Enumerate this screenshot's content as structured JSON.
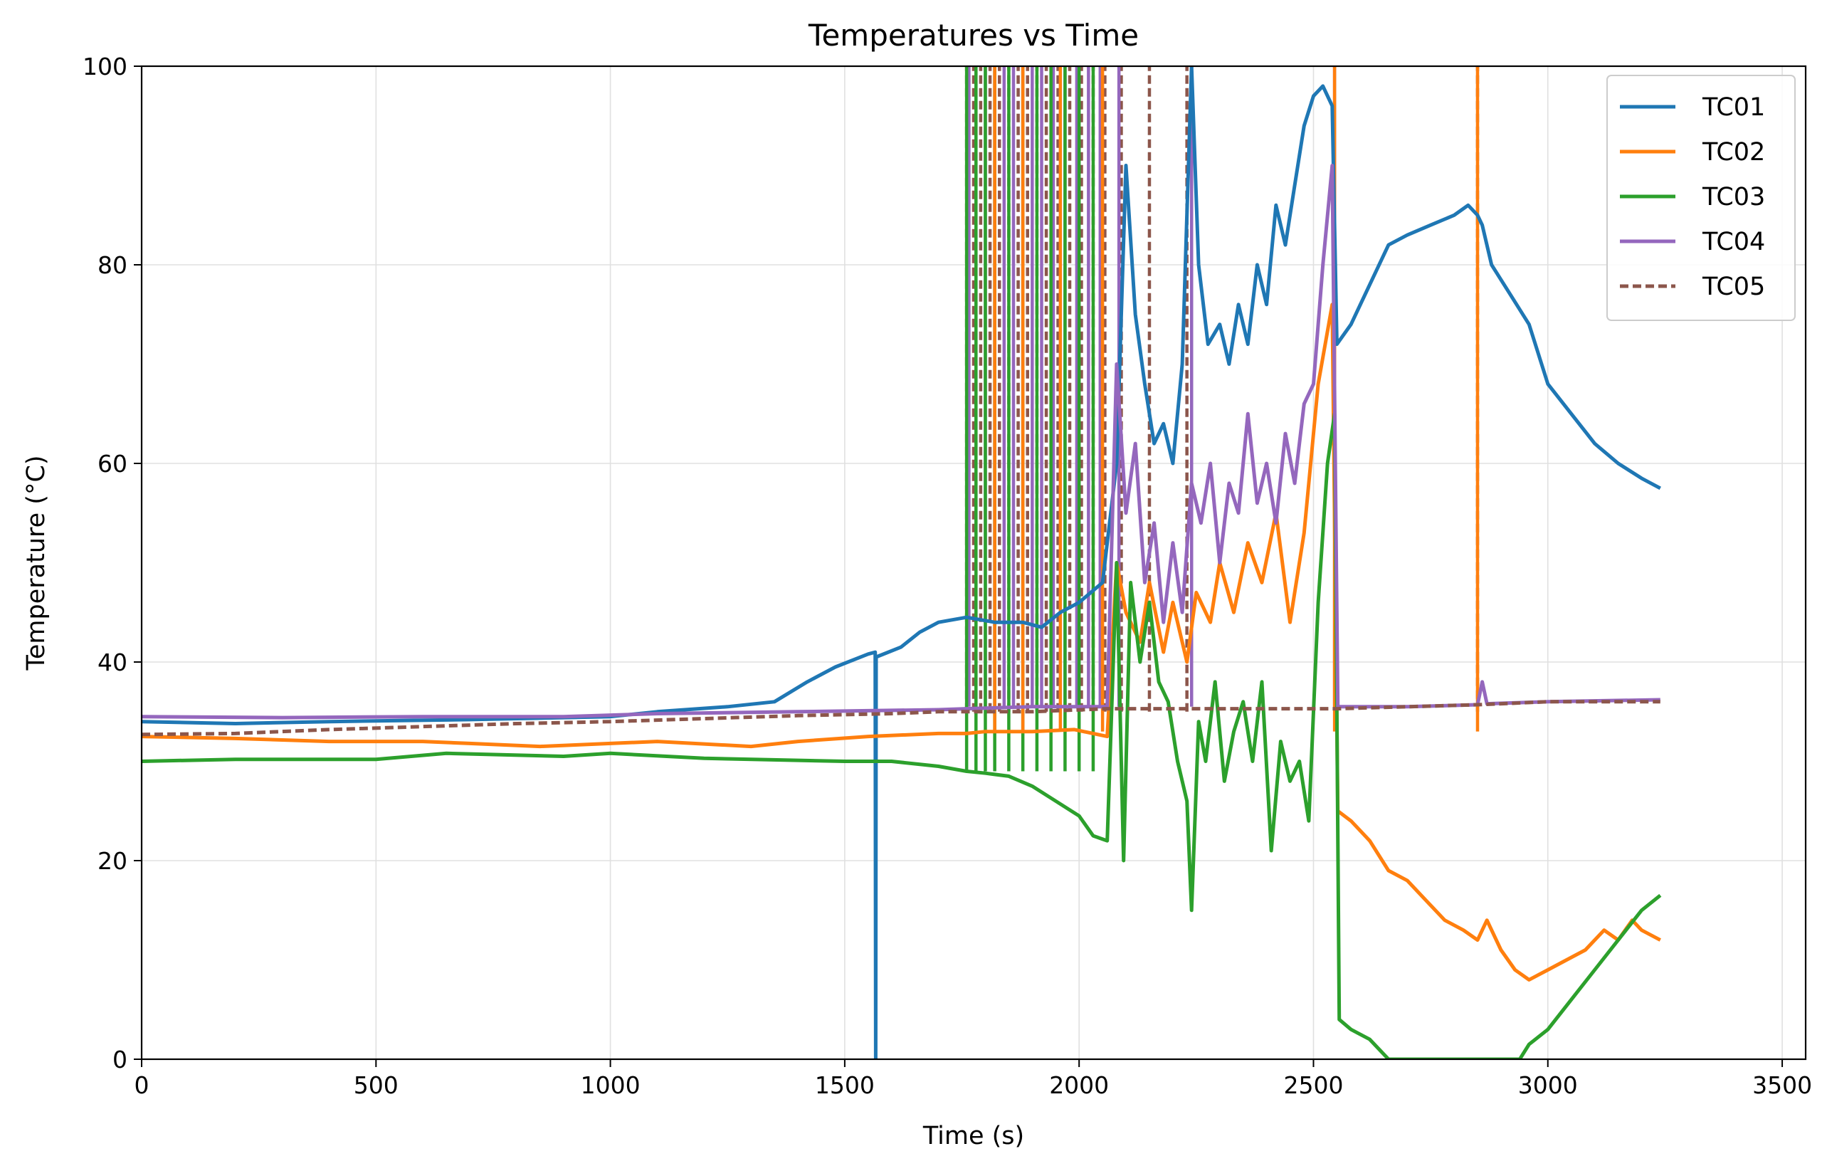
{
  "chart_data": {
    "type": "line",
    "title": "Temperatures vs Time",
    "xlabel": "Time (s)",
    "ylabel": "Temperature (°C)",
    "xlim": [
      0,
      3550
    ],
    "ylim": [
      0,
      100
    ],
    "xticks": [
      0,
      500,
      1000,
      1500,
      2000,
      2500,
      3000,
      3500
    ],
    "yticks": [
      0,
      20,
      40,
      60,
      80,
      100
    ],
    "grid": true,
    "legend_position": "top-right",
    "series": [
      {
        "name": "TC01",
        "color": "#1f77b4",
        "dash": false,
        "points": [
          [
            0,
            34
          ],
          [
            200,
            33.8
          ],
          [
            400,
            34
          ],
          [
            700,
            34.2
          ],
          [
            1000,
            34.5
          ],
          [
            1100,
            35
          ],
          [
            1250,
            35.5
          ],
          [
            1350,
            36
          ],
          [
            1420,
            38
          ],
          [
            1480,
            39.5
          ],
          [
            1550,
            40.8
          ],
          [
            1565,
            41
          ],
          [
            1566,
            0
          ],
          [
            1567,
            40.5
          ],
          [
            1620,
            41.5
          ],
          [
            1660,
            43
          ],
          [
            1700,
            44
          ],
          [
            1760,
            44.5
          ],
          [
            1820,
            44
          ],
          [
            1880,
            44
          ],
          [
            1920,
            43.5
          ],
          [
            1960,
            45
          ],
          [
            2000,
            46
          ],
          [
            2050,
            48
          ],
          [
            2080,
            60
          ],
          [
            2100,
            90
          ],
          [
            2120,
            75
          ],
          [
            2140,
            68
          ],
          [
            2160,
            62
          ],
          [
            2180,
            64
          ],
          [
            2200,
            60
          ],
          [
            2220,
            70
          ],
          [
            2240,
            100
          ],
          [
            2255,
            80
          ],
          [
            2275,
            72
          ],
          [
            2300,
            74
          ],
          [
            2320,
            70
          ],
          [
            2340,
            76
          ],
          [
            2360,
            72
          ],
          [
            2380,
            80
          ],
          [
            2400,
            76
          ],
          [
            2420,
            86
          ],
          [
            2440,
            82
          ],
          [
            2460,
            88
          ],
          [
            2480,
            94
          ],
          [
            2500,
            97
          ],
          [
            2520,
            98
          ],
          [
            2540,
            96
          ],
          [
            2550,
            72
          ],
          [
            2580,
            74
          ],
          [
            2620,
            78
          ],
          [
            2660,
            82
          ],
          [
            2700,
            83
          ],
          [
            2750,
            84
          ],
          [
            2800,
            85
          ],
          [
            2830,
            86
          ],
          [
            2850,
            85
          ],
          [
            2860,
            84
          ],
          [
            2880,
            80
          ],
          [
            2920,
            77
          ],
          [
            2960,
            74
          ],
          [
            3000,
            68
          ],
          [
            3050,
            65
          ],
          [
            3100,
            62
          ],
          [
            3150,
            60
          ],
          [
            3200,
            58.5
          ],
          [
            3240,
            57.5
          ]
        ]
      },
      {
        "name": "TC02",
        "color": "#ff7f0e",
        "dash": false,
        "points": [
          [
            0,
            32.5
          ],
          [
            200,
            32.3
          ],
          [
            400,
            32
          ],
          [
            600,
            32
          ],
          [
            700,
            31.8
          ],
          [
            850,
            31.5
          ],
          [
            1000,
            31.8
          ],
          [
            1100,
            32
          ],
          [
            1300,
            31.5
          ],
          [
            1400,
            32
          ],
          [
            1550,
            32.5
          ],
          [
            1700,
            32.8
          ],
          [
            1760,
            32.8
          ],
          [
            1800,
            33
          ],
          [
            1900,
            33
          ],
          [
            1990,
            33.2
          ],
          [
            2060,
            32.5
          ],
          [
            2080,
            50
          ],
          [
            2100,
            45
          ],
          [
            2130,
            42
          ],
          [
            2150,
            48
          ],
          [
            2180,
            41
          ],
          [
            2200,
            46
          ],
          [
            2230,
            40
          ],
          [
            2250,
            47
          ],
          [
            2280,
            44
          ],
          [
            2300,
            50
          ],
          [
            2330,
            45
          ],
          [
            2360,
            52
          ],
          [
            2390,
            48
          ],
          [
            2420,
            55
          ],
          [
            2450,
            44
          ],
          [
            2480,
            53
          ],
          [
            2510,
            68
          ],
          [
            2540,
            76
          ],
          [
            2552,
            25
          ],
          [
            2580,
            24
          ],
          [
            2620,
            22
          ],
          [
            2660,
            19
          ],
          [
            2700,
            18
          ],
          [
            2740,
            16
          ],
          [
            2780,
            14
          ],
          [
            2820,
            13
          ],
          [
            2850,
            12
          ],
          [
            2870,
            14
          ],
          [
            2900,
            11
          ],
          [
            2930,
            9
          ],
          [
            2960,
            8
          ],
          [
            3000,
            9
          ],
          [
            3040,
            10
          ],
          [
            3080,
            11
          ],
          [
            3120,
            13
          ],
          [
            3150,
            12
          ],
          [
            3180,
            14
          ],
          [
            3200,
            13
          ],
          [
            3240,
            12
          ]
        ]
      },
      {
        "name": "TC03",
        "color": "#2ca02c",
        "dash": false,
        "points": [
          [
            0,
            30
          ],
          [
            200,
            30.2
          ],
          [
            500,
            30.2
          ],
          [
            650,
            30.8
          ],
          [
            900,
            30.5
          ],
          [
            1000,
            30.8
          ],
          [
            1200,
            30.3
          ],
          [
            1500,
            30
          ],
          [
            1600,
            30
          ],
          [
            1700,
            29.5
          ],
          [
            1760,
            29
          ],
          [
            1800,
            28.8
          ],
          [
            1850,
            28.5
          ],
          [
            1900,
            27.5
          ],
          [
            1950,
            26
          ],
          [
            2000,
            24.5
          ],
          [
            2030,
            22.5
          ],
          [
            2060,
            22
          ],
          [
            2080,
            50
          ],
          [
            2095,
            20
          ],
          [
            2110,
            48
          ],
          [
            2130,
            40
          ],
          [
            2150,
            46
          ],
          [
            2170,
            38
          ],
          [
            2190,
            36
          ],
          [
            2210,
            30
          ],
          [
            2230,
            26
          ],
          [
            2240,
            15
          ],
          [
            2255,
            34
          ],
          [
            2270,
            30
          ],
          [
            2290,
            38
          ],
          [
            2310,
            28
          ],
          [
            2330,
            33
          ],
          [
            2350,
            36
          ],
          [
            2370,
            30
          ],
          [
            2390,
            38
          ],
          [
            2410,
            21
          ],
          [
            2430,
            32
          ],
          [
            2450,
            28
          ],
          [
            2470,
            30
          ],
          [
            2490,
            24
          ],
          [
            2510,
            46
          ],
          [
            2530,
            60
          ],
          [
            2545,
            65
          ],
          [
            2555,
            4
          ],
          [
            2580,
            3
          ],
          [
            2620,
            2
          ],
          [
            2660,
            0
          ],
          [
            2940,
            0
          ],
          [
            2960,
            1.5
          ],
          [
            3000,
            3
          ],
          [
            3050,
            6
          ],
          [
            3100,
            9
          ],
          [
            3150,
            12
          ],
          [
            3200,
            15
          ],
          [
            3240,
            16.5
          ]
        ]
      },
      {
        "name": "TC04",
        "color": "#9467bd",
        "dash": false,
        "points": [
          [
            0,
            34.5
          ],
          [
            300,
            34.4
          ],
          [
            600,
            34.5
          ],
          [
            900,
            34.5
          ],
          [
            1100,
            34.8
          ],
          [
            1400,
            35
          ],
          [
            1700,
            35.2
          ],
          [
            1760,
            35.3
          ],
          [
            1900,
            35.5
          ],
          [
            2000,
            35.5
          ],
          [
            2060,
            35.5
          ],
          [
            2080,
            70
          ],
          [
            2100,
            55
          ],
          [
            2120,
            62
          ],
          [
            2140,
            48
          ],
          [
            2160,
            54
          ],
          [
            2180,
            44
          ],
          [
            2200,
            52
          ],
          [
            2220,
            45
          ],
          [
            2240,
            58
          ],
          [
            2260,
            54
          ],
          [
            2280,
            60
          ],
          [
            2300,
            50
          ],
          [
            2320,
            58
          ],
          [
            2340,
            55
          ],
          [
            2360,
            65
          ],
          [
            2380,
            56
          ],
          [
            2400,
            60
          ],
          [
            2420,
            54
          ],
          [
            2440,
            63
          ],
          [
            2460,
            58
          ],
          [
            2480,
            66
          ],
          [
            2500,
            68
          ],
          [
            2520,
            80
          ],
          [
            2540,
            90
          ],
          [
            2552,
            35.5
          ],
          [
            2700,
            35.5
          ],
          [
            2850,
            35.7
          ],
          [
            2860,
            38
          ],
          [
            2870,
            35.8
          ],
          [
            3000,
            36
          ],
          [
            3240,
            36.2
          ]
        ]
      },
      {
        "name": "TC05",
        "color": "#8c564b",
        "dash": true,
        "points": [
          [
            0,
            32.7
          ],
          [
            200,
            32.8
          ],
          [
            400,
            33.2
          ],
          [
            600,
            33.5
          ],
          [
            800,
            33.8
          ],
          [
            1000,
            34
          ],
          [
            1200,
            34.3
          ],
          [
            1400,
            34.6
          ],
          [
            1600,
            34.8
          ],
          [
            1700,
            35
          ],
          [
            1760,
            35
          ],
          [
            1900,
            35
          ],
          [
            2060,
            35.3
          ],
          [
            2552,
            35.3
          ],
          [
            2700,
            35.5
          ],
          [
            2850,
            35.7
          ],
          [
            3000,
            36
          ],
          [
            3240,
            36
          ]
        ]
      }
    ],
    "spikes": [
      {
        "color": "#8c564b",
        "dash": true,
        "x": [
          1760,
          1775,
          1790,
          1810,
          1830,
          1850,
          1870,
          1890,
          1910,
          1930,
          1955,
          1980,
          2005,
          2030,
          2055,
          2090,
          2150,
          2230,
          2850
        ],
        "low": 35,
        "high": 100
      },
      {
        "color": "#9467bd",
        "dash": false,
        "x": [
          1765,
          1780,
          1800,
          1820,
          1840,
          1860,
          1880,
          1900,
          1920,
          1945,
          1970,
          1995,
          2020,
          2045,
          2085,
          2240,
          2545
        ],
        "low": 35.5,
        "high": 100
      },
      {
        "color": "#2ca02c",
        "dash": false,
        "x": [
          1760,
          1780,
          1800,
          1820,
          1850,
          1880,
          1910,
          1940,
          1970,
          2000,
          2030
        ],
        "low": 29,
        "high": 100
      },
      {
        "color": "#ff7f0e",
        "dash": false,
        "x": [
          1820,
          1880,
          1960,
          2050,
          2545,
          2850
        ],
        "low": 33,
        "high": 100
      }
    ]
  }
}
